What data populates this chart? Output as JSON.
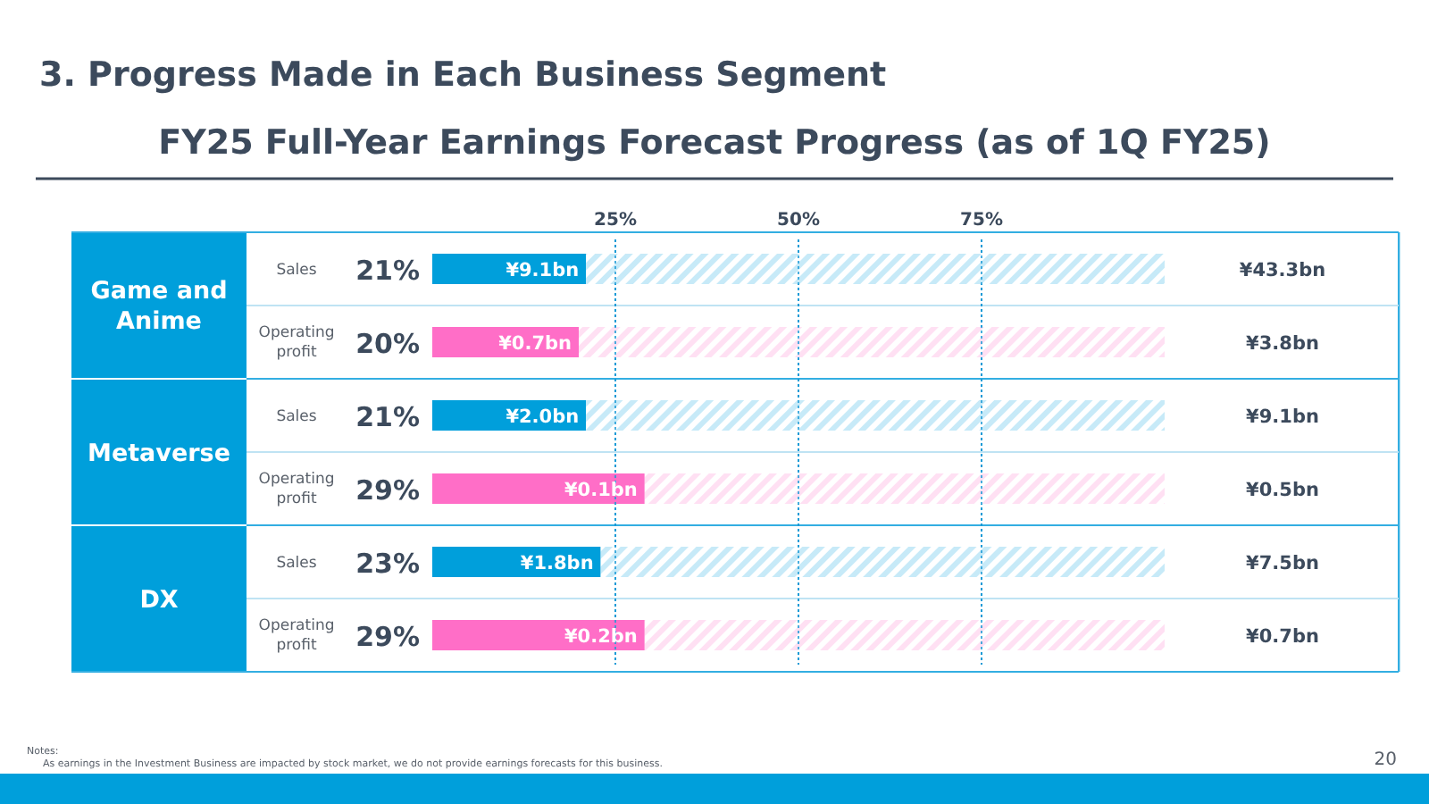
{
  "chart_data": {
    "type": "bar",
    "orientation": "horizontal",
    "title": "3. Progress Made in Each Business Segment",
    "subtitle": "FY25 Full-Year Earnings Forecast Progress (as of 1Q FY25)",
    "categories": [
      "Sales",
      "Operating profit",
      "Sales",
      "Operating profit",
      "Sales",
      "Operating profit"
    ],
    "stacked": true,
    "series": [
      {
        "values": [
          21,
          20,
          21,
          29,
          23,
          29
        ],
        "colors": [
          "#009fdb",
          "#ff6ec7",
          "#009fdb",
          "#ff6ec7",
          "#009fdb",
          "#ff6ec7"
        ],
        "value_labels": [
          "21%",
          "20%",
          "21%",
          "29%",
          "23%",
          "29%"
        ]
      },
      {
        "values": [
          79,
          80,
          79,
          71,
          77,
          71
        ],
        "colors": [
          "#c7eaf8",
          "#ffe0f3",
          "#c7eaf8",
          "#ffe0f3",
          "#c7eaf8",
          "#ffe0f3"
        ]
      }
    ],
    "xlim": [
      0,
      100
    ],
    "xticks": [
      {
        "value": 25,
        "label": "25%"
      },
      {
        "value": 50,
        "label": "50%"
      },
      {
        "value": 75,
        "label": "75%"
      }
    ],
    "grid": "x",
    "annotations": [
      "Game and Anime",
      "Metaverse",
      "DX",
      "¥9.1bn",
      "¥0.7bn",
      "¥2.0bn",
      "¥0.1bn",
      "¥1.8bn",
      "¥0.2bn",
      "¥43.3bn",
      "¥3.8bn",
      "¥9.1bn",
      "¥0.5bn",
      "¥7.5bn",
      "¥0.7bn",
      "Notes:",
      "As earnings in the Investment Business are impacted by stock market, we do not provide earnings forecasts for this business.",
      "20"
    ]
  }
}
